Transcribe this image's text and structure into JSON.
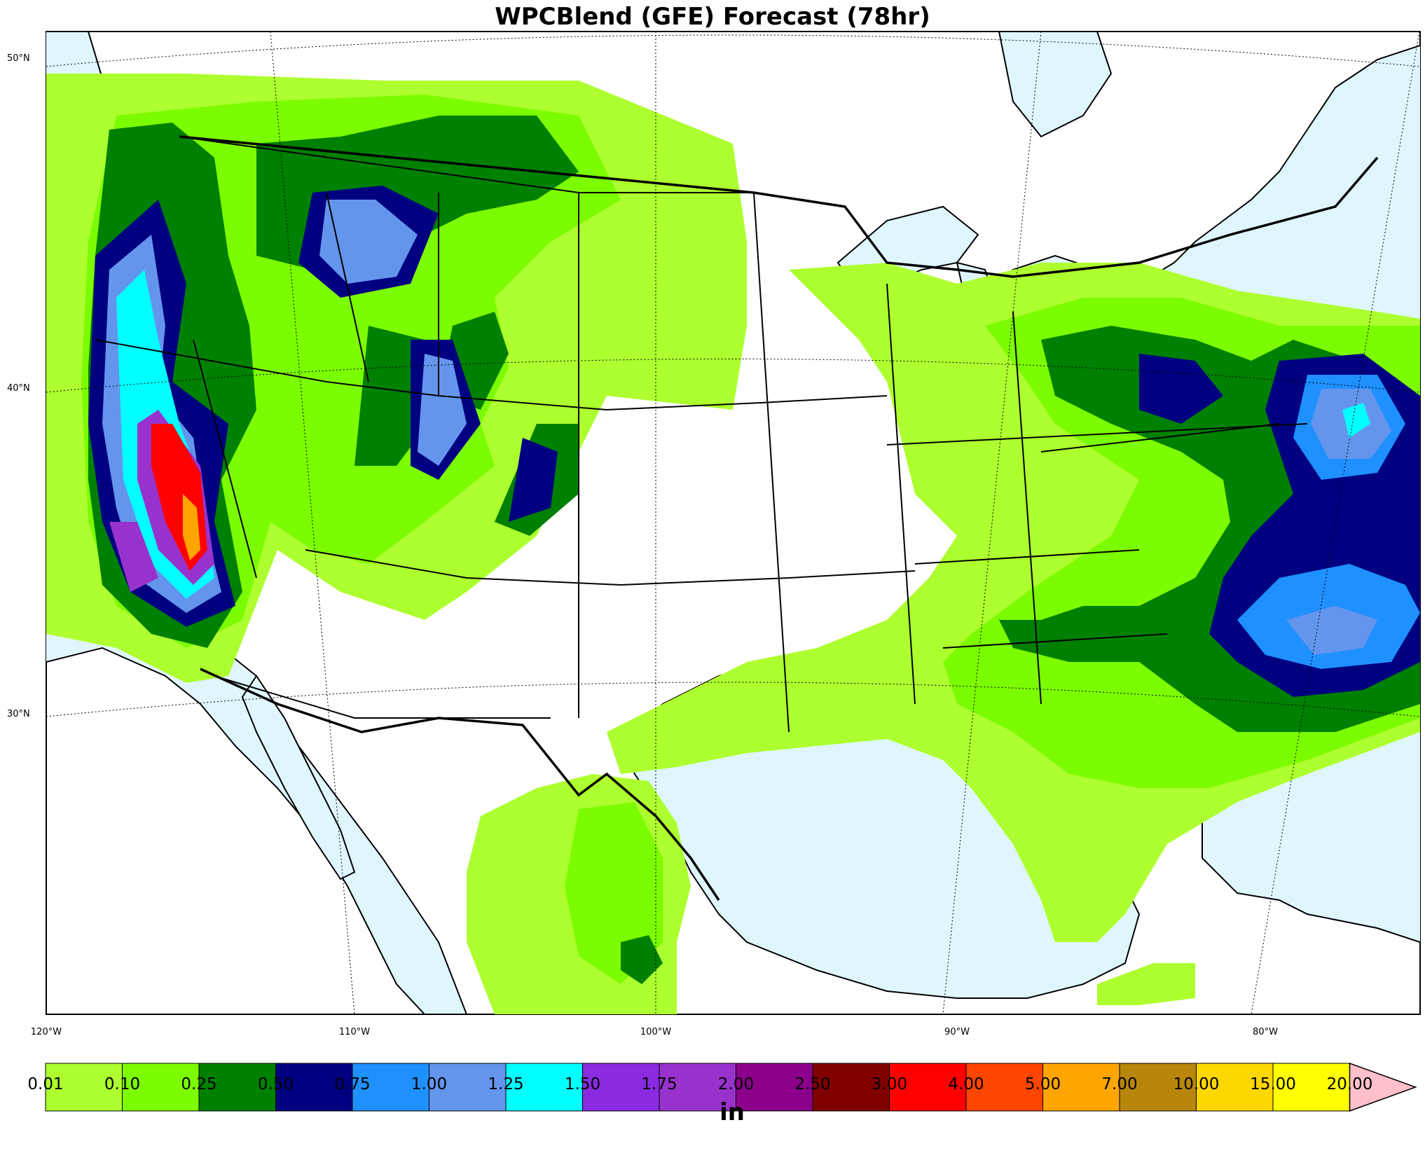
{
  "title": "WPCBlend (GFE) Forecast (78hr)",
  "lat_labels": [
    "50°N",
    "40°N",
    "30°N"
  ],
  "lon_labels": [
    "120°W",
    "110°W",
    "100°W",
    "90°W",
    "80°W"
  ],
  "units": "in",
  "colorbar": {
    "levels": [
      "0.01",
      "0.10",
      "0.25",
      "0.50",
      "0.75",
      "1.00",
      "1.25",
      "1.50",
      "1.75",
      "2.00",
      "2.50",
      "3.00",
      "4.00",
      "5.00",
      "7.00",
      "10.00",
      "15.00",
      "20.00"
    ],
    "colors": [
      "#adff2f",
      "#7cfc00",
      "#008000",
      "#000080",
      "#1e90ff",
      "#6495ed",
      "#00ffff",
      "#8a2be2",
      "#9932cc",
      "#8b008b",
      "#800000",
      "#ff0000",
      "#ff4500",
      "#ffa500",
      "#b8860b",
      "#ffd700",
      "#ffff00"
    ],
    "extend_color": "#ffc0cb"
  },
  "colors": {
    "water": "#e0f6ff",
    "land": "#ffffff",
    "border": "#000000"
  }
}
